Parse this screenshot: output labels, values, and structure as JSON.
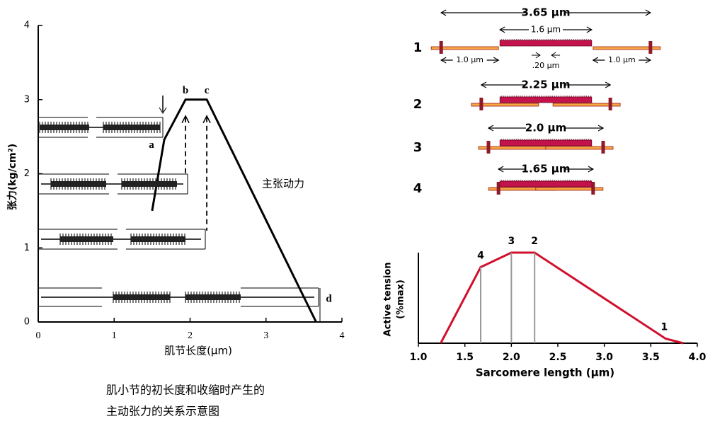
{
  "chart_data": [
    {
      "type": "line",
      "y_label": "张力(kg/cm²)",
      "x_label": "肌节长度(μm)",
      "curve_label": "主张动力",
      "caption": [
        "肌小节的初长度和收缩时产生的",
        "主动张力的关系示意图"
      ],
      "x": [
        1.5,
        1.66,
        1.94,
        2.22,
        3.66
      ],
      "values": [
        1.5,
        2.46,
        3.0,
        3.0,
        0
      ],
      "point_labels": [
        null,
        "a",
        "b",
        "c",
        "d"
      ],
      "color": "#000000",
      "xlim": [
        0,
        4
      ],
      "ylim": [
        0,
        4
      ],
      "xticks": [
        0,
        1,
        2,
        3,
        4
      ],
      "yticks": [
        0,
        1,
        2,
        3,
        4
      ]
    },
    {
      "type": "line",
      "y_label": [
        "Active tension",
        "(%max)"
      ],
      "x_label": "Sarcomere length (μm)",
      "x": [
        1.24,
        1.67,
        2.0,
        2.25,
        3.66,
        3.85
      ],
      "values": [
        0,
        84,
        100,
        100,
        5,
        0
      ],
      "point_labels": [
        null,
        "4",
        "3",
        "2",
        "1",
        null
      ],
      "color": "#d0102c",
      "xlim": [
        1,
        4
      ],
      "ylim": [
        0,
        100
      ],
      "xticks": [
        {
          "value": 1,
          "label": "1.0"
        },
        {
          "value": 1.5,
          "label": "1.5"
        },
        {
          "value": 2,
          "label": "2.0"
        },
        {
          "value": 2.5,
          "label": "2.5"
        },
        {
          "value": 3,
          "label": "3.0"
        },
        {
          "value": 3.5,
          "label": "3.5"
        },
        {
          "value": 4,
          "label": "4.0"
        }
      ],
      "diagrams": [
        {
          "number": "1",
          "sarcomere": {
            "value": 3.65,
            "label": "3.65 μm"
          },
          "thick": {
            "value": 1.6,
            "label": "1.6 μm"
          },
          "bare_zone": {
            "value": 0.2,
            "label": ".20 μm"
          },
          "thin": [
            {
              "value": 1.0,
              "label": "1.0 μm"
            },
            {
              "value": 1.0,
              "label": "1.0 μm"
            }
          ]
        },
        {
          "number": "2",
          "sarcomere": {
            "value": 2.25,
            "label": "2.25 μm"
          }
        },
        {
          "number": "3",
          "sarcomere": {
            "value": 2.0,
            "label": "2.0 μm"
          }
        },
        {
          "number": "4",
          "sarcomere": {
            "value": 1.65,
            "label": "1.65 μm"
          }
        }
      ]
    }
  ]
}
